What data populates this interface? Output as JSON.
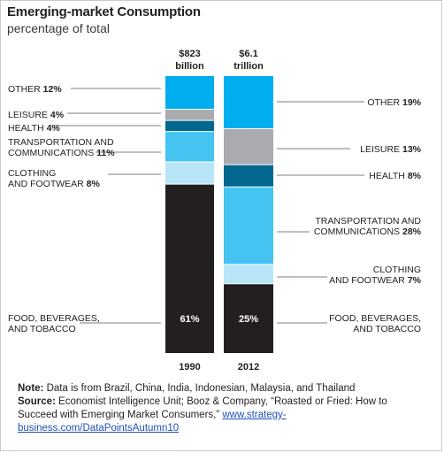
{
  "chart_data": {
    "type": "bar",
    "stacked": true,
    "title": "Emerging-market Consumption",
    "subtitle": "percentage of total",
    "ylim": [
      0,
      100
    ],
    "categories": [
      "1990",
      "2012"
    ],
    "bar_totals": [
      {
        "line1": "$823",
        "line2": "billion"
      },
      {
        "line1": "$6.1",
        "line2": "trillion"
      }
    ],
    "series": [
      {
        "name": "FOOD, BEVERAGES, AND TOBACCO",
        "values": [
          61,
          25
        ],
        "color": "#231f20",
        "label_lines_left": [
          {
            "text": "FOOD, BEVERAGES,"
          },
          {
            "text": "AND TOBACCO"
          }
        ],
        "label_lines_right": [
          {
            "text": "FOOD, BEVERAGES,"
          },
          {
            "text": "AND TOBACCO"
          }
        ],
        "inside_labels": [
          "61%",
          "25%"
        ]
      },
      {
        "name": "CLOTHING AND FOOTWEAR",
        "values": [
          8,
          7
        ],
        "color": "#b8e5f7",
        "label_lines_left": [
          {
            "text": "CLOTHING"
          },
          {
            "text": "AND FOOTWEAR ",
            "bold": "8%"
          }
        ],
        "label_lines_right": [
          {
            "text": "CLOTHING"
          },
          {
            "text": "AND FOOTWEAR ",
            "bold": "7%"
          }
        ]
      },
      {
        "name": "TRANSPORTATION AND COMMUNICATIONS",
        "values": [
          11,
          28
        ],
        "color": "#45c4f2",
        "label_lines_left": [
          {
            "text": "TRANSPORTATION AND"
          },
          {
            "text": "COMMUNICATIONS ",
            "bold": "11%"
          }
        ],
        "label_lines_right": [
          {
            "text": "TRANSPORTATION AND"
          },
          {
            "text": "COMMUNICATIONS ",
            "bold": "28%"
          }
        ]
      },
      {
        "name": "HEALTH",
        "values": [
          4,
          8
        ],
        "color": "#00678f",
        "label_lines_left": [
          {
            "text": "HEALTH ",
            "bold": "4%"
          }
        ],
        "label_lines_right": [
          {
            "text": "HEALTH ",
            "bold": "8%"
          }
        ]
      },
      {
        "name": "LEISURE",
        "values": [
          4,
          13
        ],
        "color": "#a9abae",
        "label_lines_left": [
          {
            "text": "LEISURE ",
            "bold": "4%"
          }
        ],
        "label_lines_right": [
          {
            "text": "LEISURE ",
            "bold": "13%"
          }
        ]
      },
      {
        "name": "OTHER",
        "values": [
          12,
          19
        ],
        "color": "#00aeef",
        "label_lines_left": [
          {
            "text": "OTHER ",
            "bold": "12%"
          }
        ],
        "label_lines_right": [
          {
            "text": "OTHER ",
            "bold": "19%"
          }
        ]
      }
    ]
  },
  "note": {
    "note_label": "Note:",
    "note_text": " Data is from Brazil, China, India, Indonesian, Malaysia, and Thailand",
    "source_label": "Source:",
    "source_text": " Economist Intelligence Unit; Booz & Company, “Roasted or Fried: How to Succeed with Emerging Market Consumers,” ",
    "link_text": "www.strategy-business.com/DataPointsAutumn10"
  }
}
